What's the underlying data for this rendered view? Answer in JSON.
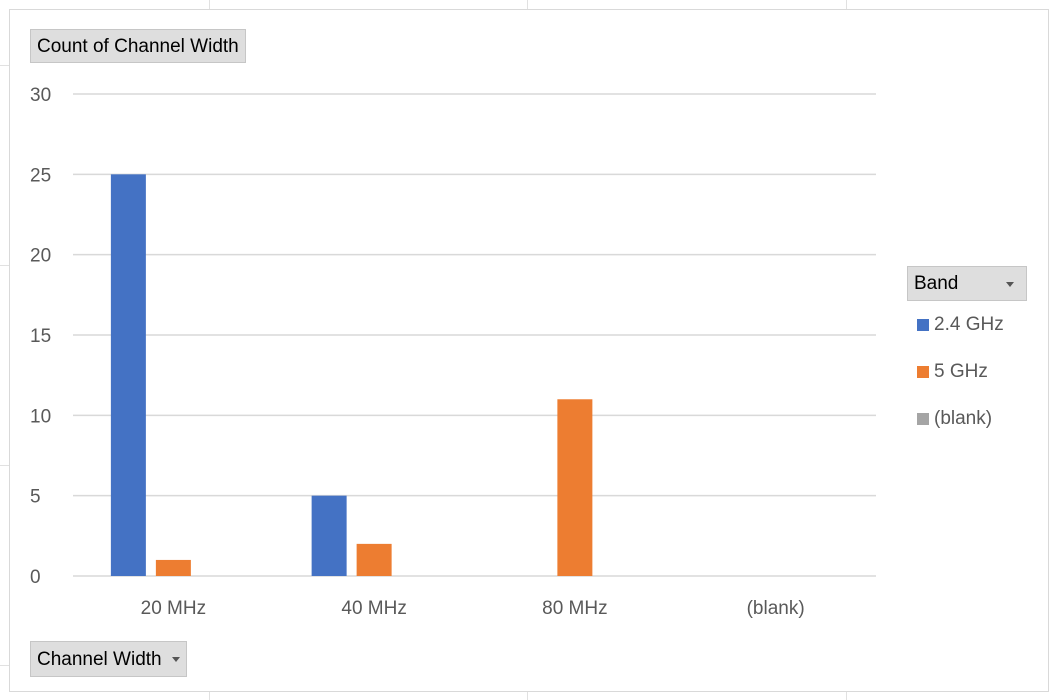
{
  "value_field_button": {
    "label": "Count of Channel Width"
  },
  "axis_field_button": {
    "label": "Channel Width"
  },
  "legend_field_button": {
    "label": "Band"
  },
  "colors": {
    "series_2_4": "#4472c4",
    "series_5": "#ed7d31",
    "series_blank": "#a5a5a5",
    "gridline": "#d9d9d9",
    "axis_text": "#595959"
  },
  "chart_data": {
    "type": "bar",
    "title": "",
    "xlabel": "",
    "ylabel": "",
    "categories": [
      "20 MHz",
      "40 MHz",
      "80 MHz",
      "(blank)"
    ],
    "ylim": [
      0,
      30
    ],
    "yticks": [
      0,
      5,
      10,
      15,
      20,
      25,
      30
    ],
    "grid": true,
    "legend_position": "right",
    "series": [
      {
        "name": "2.4 GHz",
        "values": [
          25,
          5,
          null,
          null
        ]
      },
      {
        "name": "5 GHz",
        "values": [
          1,
          2,
          11,
          null
        ]
      },
      {
        "name": "(blank)",
        "values": [
          null,
          null,
          null,
          null
        ]
      }
    ]
  }
}
